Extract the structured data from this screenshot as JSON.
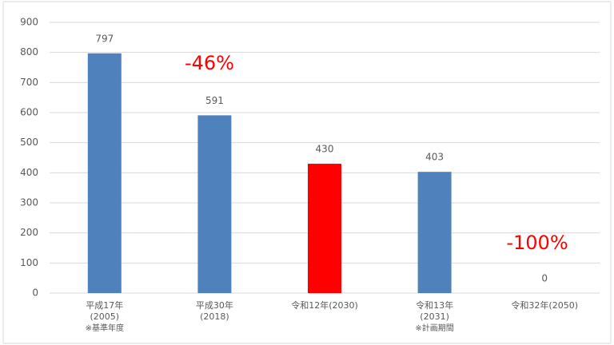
{
  "chart_data": {
    "type": "bar",
    "categories": [
      [
        "平成17年",
        "(2005)",
        "※基準年度"
      ],
      [
        "平成30年",
        "(2018)"
      ],
      [
        "令和12年(2030)"
      ],
      [
        "令和13年",
        "(2031)",
        "※計画期間"
      ],
      [
        "令和32年(2050)"
      ]
    ],
    "values": [
      797,
      591,
      430,
      403,
      0
    ],
    "colors": [
      "#4f81bd",
      "#4f81bd",
      "#ff0000",
      "#4f81bd",
      "#4f81bd"
    ],
    "ylim": [
      0,
      900
    ],
    "yticks": [
      0,
      100,
      200,
      300,
      400,
      500,
      600,
      700,
      800,
      900
    ],
    "grid": true,
    "annotations": [
      {
        "text": "-46%",
        "color": "#ff0000"
      },
      {
        "text": "-100%",
        "color": "#ff0000"
      }
    ]
  }
}
